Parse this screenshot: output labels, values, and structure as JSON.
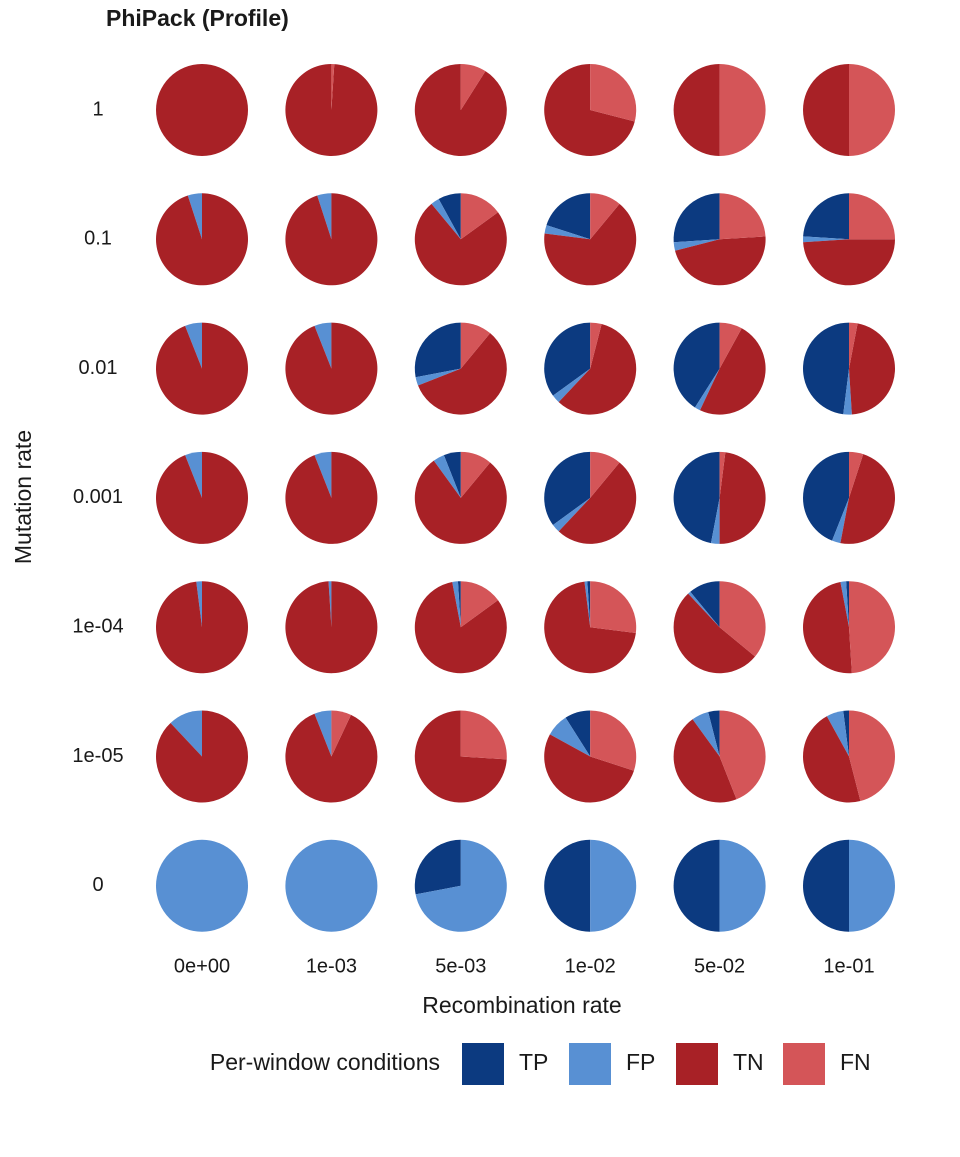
{
  "chart_data": {
    "type": "pie_grid",
    "title": "PhiPack (Profile)",
    "xlabel": "Recombination rate",
    "ylabel": "Mutation rate",
    "columns": [
      "0e+00",
      "1e-03",
      "5e-03",
      "1e-02",
      "5e-02",
      "1e-01"
    ],
    "rows": [
      "1",
      "0.1",
      "0.01",
      "0.001",
      "1e-04",
      "1e-05",
      "0"
    ],
    "legend_title": "Per-window conditions",
    "series": [
      {
        "name": "TP",
        "color": "#0c3a80",
        "values": [
          [
            0,
            0,
            0,
            0,
            0,
            0
          ],
          [
            0,
            0,
            8,
            20,
            26,
            24
          ],
          [
            0,
            0,
            28,
            35,
            41,
            48
          ],
          [
            0,
            0,
            6,
            35,
            47,
            44
          ],
          [
            0,
            0,
            1,
            1,
            11,
            1
          ],
          [
            0,
            0,
            0,
            9,
            4,
            2
          ],
          [
            0,
            0,
            28,
            50,
            50,
            50
          ]
        ]
      },
      {
        "name": "FP",
        "color": "#5890d3",
        "values": [
          [
            0,
            0,
            0,
            0,
            0,
            0
          ],
          [
            5,
            5,
            3,
            3,
            3,
            2
          ],
          [
            6,
            6,
            3,
            3,
            2,
            3
          ],
          [
            6,
            6,
            4,
            3,
            3,
            3
          ],
          [
            2,
            1,
            2,
            1,
            1,
            2
          ],
          [
            12,
            6,
            0,
            8,
            6,
            6
          ],
          [
            100,
            100,
            72,
            50,
            50,
            50
          ]
        ]
      },
      {
        "name": "TN",
        "color": "#a82126",
        "values": [
          [
            100,
            99,
            91,
            71,
            50,
            50
          ],
          [
            95,
            95,
            74,
            66,
            47,
            49
          ],
          [
            94,
            94,
            58,
            58,
            49,
            46
          ],
          [
            94,
            94,
            79,
            51,
            48,
            48
          ],
          [
            98,
            99,
            82,
            71,
            52,
            48
          ],
          [
            88,
            87,
            74,
            53,
            46,
            46
          ],
          [
            0,
            0,
            0,
            0,
            0,
            0
          ]
        ]
      },
      {
        "name": "FN",
        "color": "#d45558",
        "values": [
          [
            0,
            1,
            9,
            29,
            50,
            50
          ],
          [
            0,
            0,
            15,
            11,
            24,
            25
          ],
          [
            0,
            0,
            11,
            4,
            8,
            3
          ],
          [
            0,
            0,
            11,
            11,
            2,
            5
          ],
          [
            0,
            0,
            15,
            27,
            36,
            49
          ],
          [
            0,
            7,
            26,
            30,
            44,
            46
          ],
          [
            0,
            0,
            0,
            0,
            0,
            0
          ]
        ]
      }
    ]
  }
}
